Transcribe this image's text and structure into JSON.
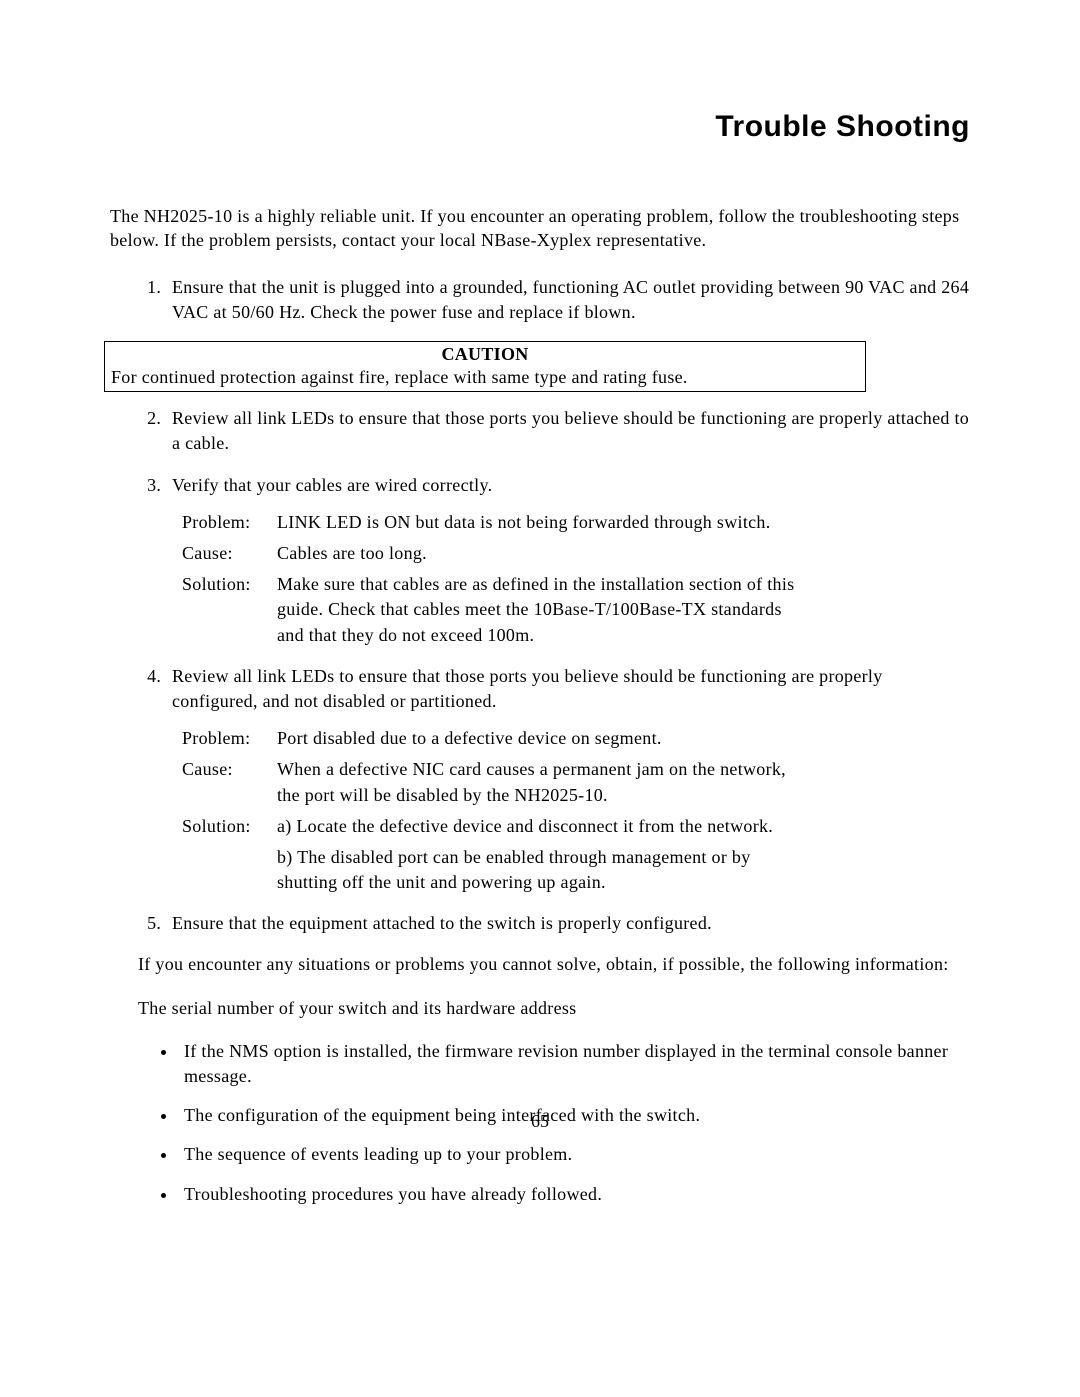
{
  "title": "Trouble Shooting",
  "intro": "The NH2025-10 is a highly reliable unit. If you encounter an operating problem, follow the troubleshooting steps below. If the problem persists, contact your local NBase-Xyplex representative.",
  "step1": "Ensure that the unit is plugged into a grounded, functioning AC outlet providing between 90 VAC and 264 VAC at 50/60 Hz. Check the power fuse and replace if blown.",
  "caution": {
    "title": "CAUTION",
    "body": "For continued protection against fire, replace with same type and rating fuse."
  },
  "step2": "Review all link LEDs to ensure that those ports you believe should be functioning are properly attached to a cable.",
  "step3": {
    "text": "Verify that your cables are wired correctly.",
    "problem_label": "Problem:",
    "problem": "LINK LED is ON but data is not being forwarded through switch.",
    "cause_label": "Cause:",
    "cause": "Cables are too long.",
    "solution_label": "Solution:",
    "solution": "Make sure that cables are as defined in the installation section of this guide. Check that cables meet the 10Base-T/100Base-TX standards and that they do not exceed 100m."
  },
  "step4": {
    "text": "Review all link LEDs to ensure that those ports you believe should be functioning are properly configured, and not disabled or partitioned.",
    "problem_label": "Problem:",
    "problem": "Port disabled due to a defective device on segment.",
    "cause_label": "Cause:",
    "cause": "When a defective NIC card causes a permanent jam on the network, the port will be disabled by the NH2025-10.",
    "solution_label": "Solution:",
    "solution_a": "a) Locate the defective device and disconnect it from the network.",
    "solution_b": "b) The disabled port can be enabled through management or by shutting off the unit and powering up again."
  },
  "step5": "Ensure that the equipment attached to the switch is properly configured.",
  "para_after": "If you encounter any situations or problems you cannot solve, obtain, if possible, the following information:",
  "para_serial": "The serial number of your switch and its hardware address",
  "bullets": [
    "If the NMS option is installed, the firmware revision number displayed in the terminal console banner message.",
    "The configuration of the equipment being interfaced with the switch.",
    "The sequence of events leading up to your problem.",
    "Troubleshooting procedures you have already followed."
  ],
  "page_number": "65"
}
